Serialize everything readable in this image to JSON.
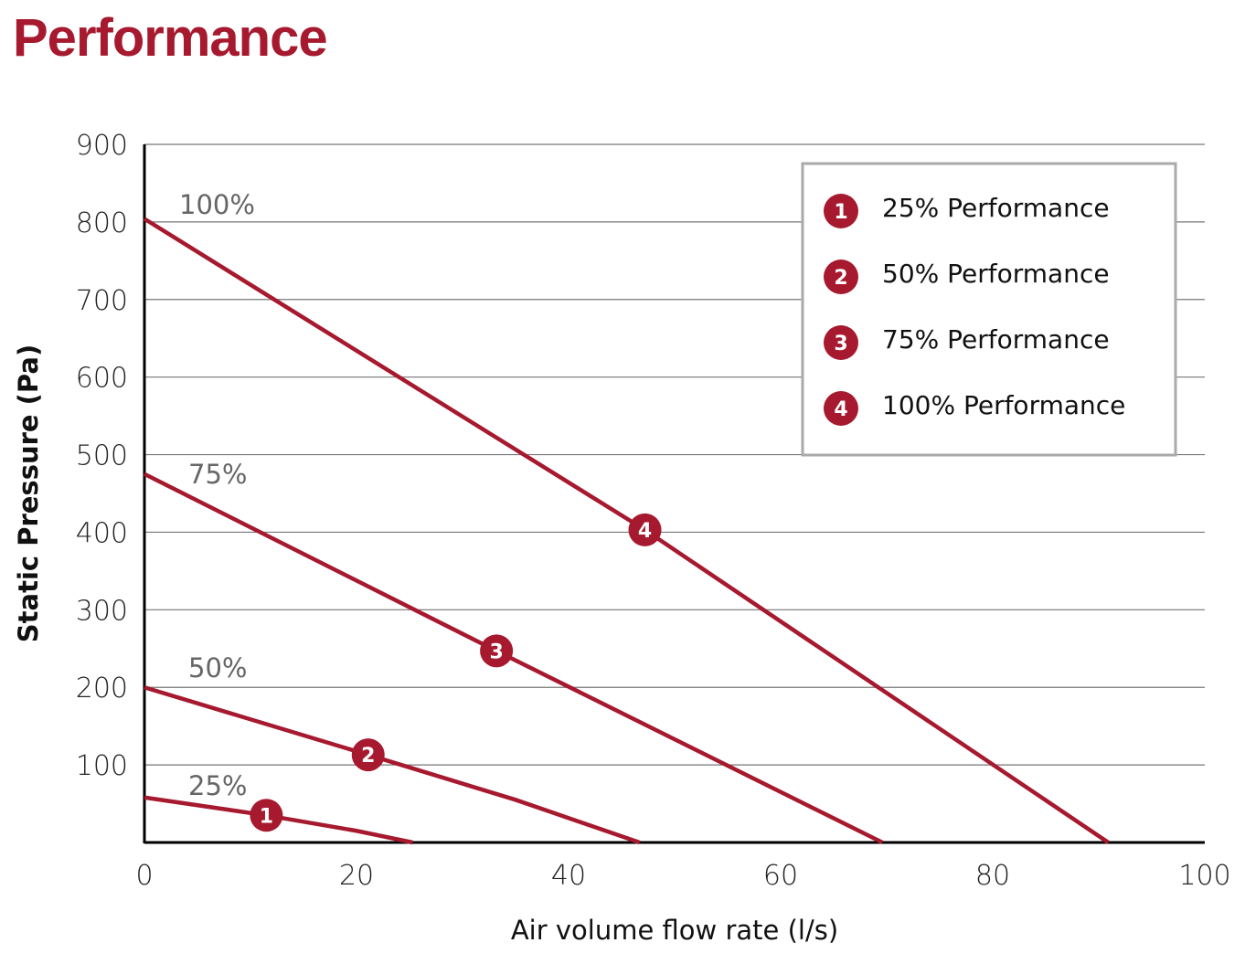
{
  "title": "Performance",
  "chart_data": {
    "type": "line",
    "title": "Performance",
    "xlabel": "Air volume flow rate (l/s)",
    "ylabel": "Static Pressure (Pa)",
    "xlim": [
      0,
      100
    ],
    "ylim": [
      0,
      900
    ],
    "xticks": [
      0,
      20,
      40,
      60,
      80,
      100
    ],
    "yticks": [
      100,
      200,
      300,
      400,
      500,
      600,
      700,
      800,
      900
    ],
    "grid": "horizontal",
    "legend_position": "top-right",
    "color": "#a6192e",
    "series": [
      {
        "name": "25% Performance",
        "curve_label": "25%",
        "marker": "1",
        "marker_point": [
          11.5,
          35
        ],
        "x": [
          0,
          11.5,
          20,
          25.3
        ],
        "y": [
          58,
          35,
          15,
          0
        ]
      },
      {
        "name": "50% Performance",
        "curve_label": "50%",
        "marker": "2",
        "marker_point": [
          21.1,
          113
        ],
        "x": [
          0,
          21.1,
          35,
          46.7
        ],
        "y": [
          200,
          113,
          55,
          0
        ]
      },
      {
        "name": "75% Performance",
        "curve_label": "75%",
        "marker": "3",
        "marker_point": [
          33.2,
          247
        ],
        "x": [
          0,
          33.2,
          69.6
        ],
        "y": [
          475,
          247,
          0
        ]
      },
      {
        "name": "100% Performance",
        "curve_label": "100%",
        "marker": "4",
        "marker_point": [
          47.2,
          403
        ],
        "x": [
          0,
          47.2,
          90.9
        ],
        "y": [
          804,
          403,
          0
        ]
      }
    ]
  }
}
